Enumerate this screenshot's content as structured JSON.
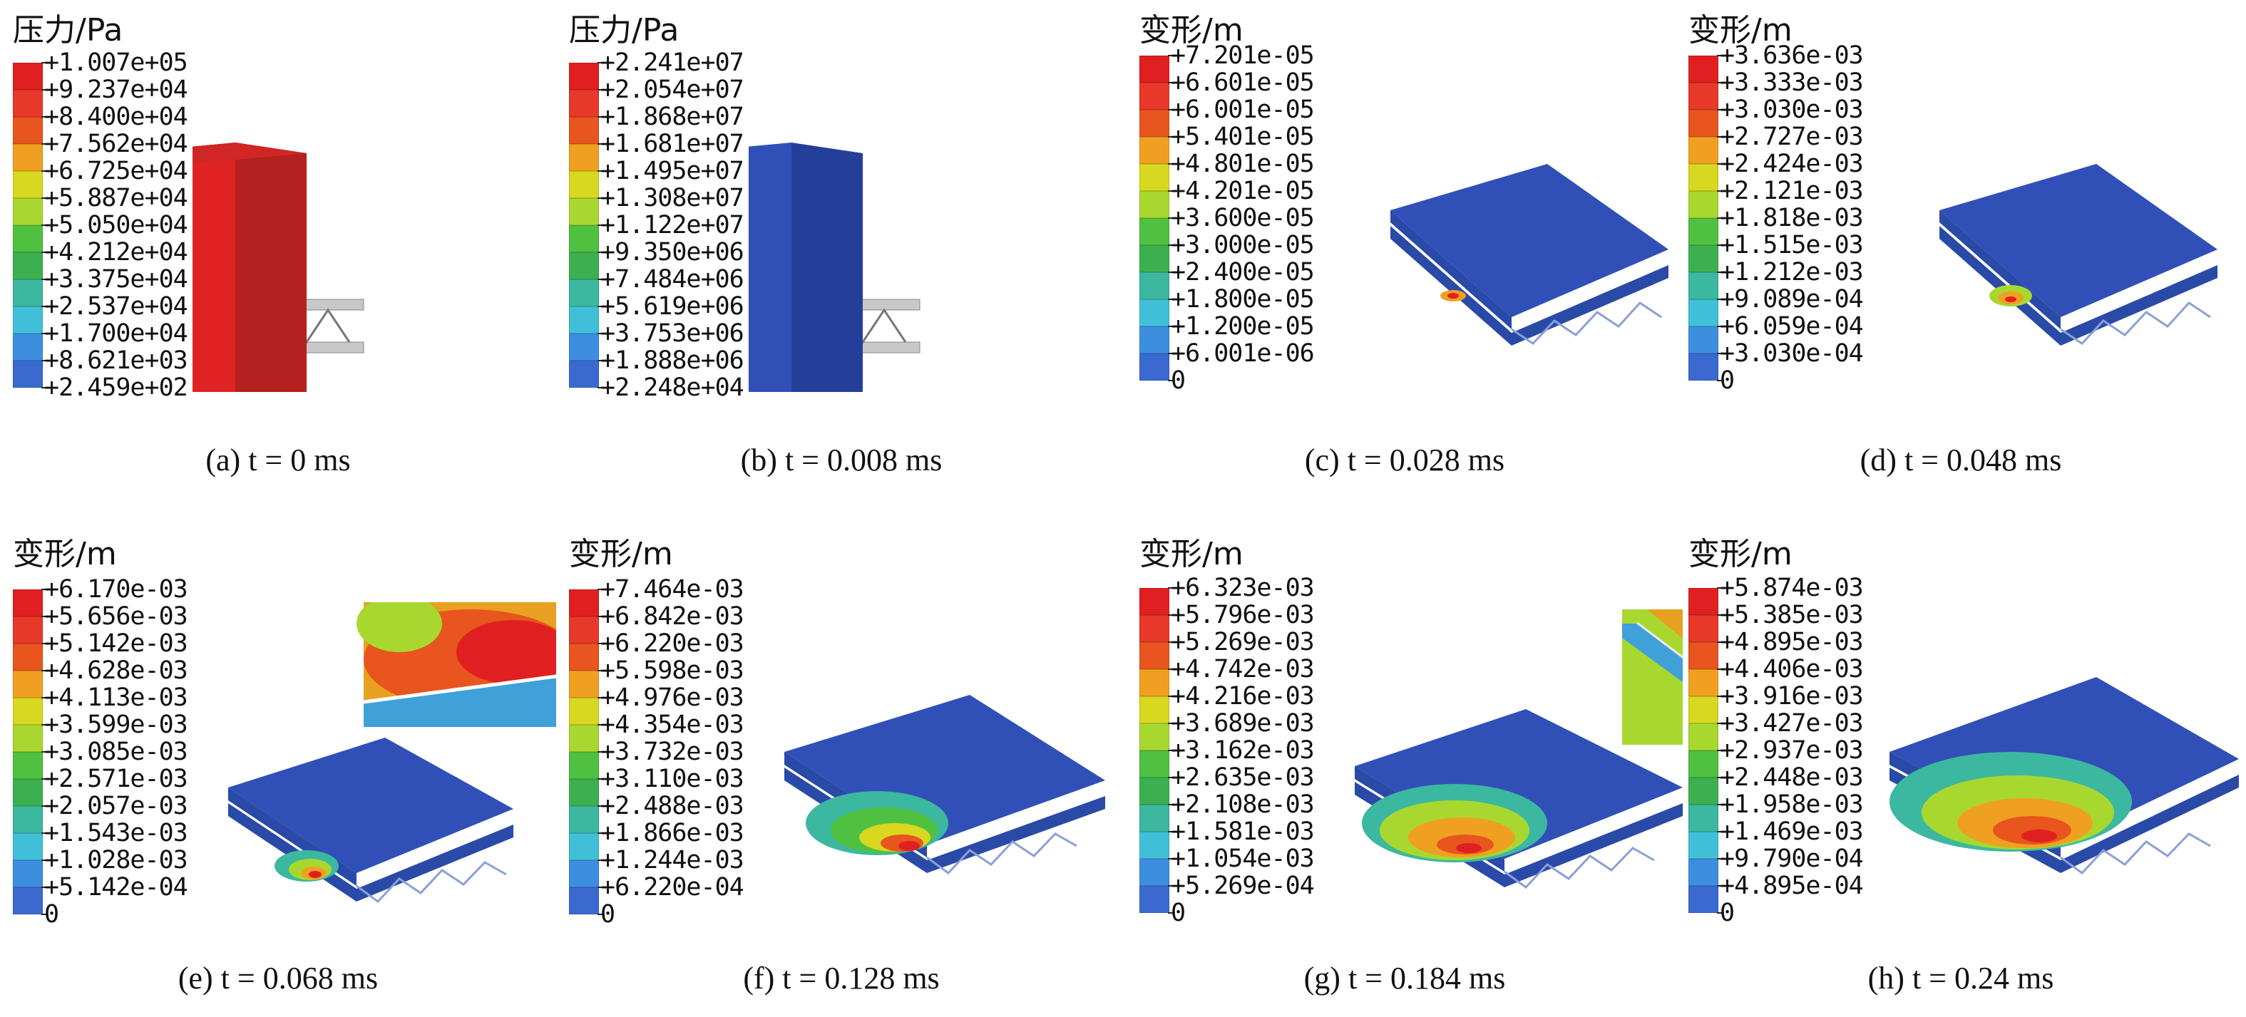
{
  "palette": [
    "#e02020",
    "#e8382a",
    "#e8551e",
    "#f0a020",
    "#d8d820",
    "#a8d830",
    "#50c040",
    "#3cb050",
    "#3cb8a0",
    "#40c0d8",
    "#3e8ee0",
    "#3a6ad0",
    "#3050b8"
  ],
  "panels": [
    {
      "title": "压力/Pa",
      "caption": "(a) t = 0 ms",
      "ticks": [
        "+1.007e+05",
        "+9.237e+04",
        "+8.400e+04",
        "+7.562e+04",
        "+6.725e+04",
        "+5.887e+04",
        "+5.050e+04",
        "+4.212e+04",
        "+3.375e+04",
        "+2.537e+04",
        "+1.700e+04",
        "+8.621e+03",
        "+2.459e+02"
      ]
    },
    {
      "title": "压力/Pa",
      "caption": "(b) t = 0.008 ms",
      "ticks": [
        "+2.241e+07",
        "+2.054e+07",
        "+1.868e+07",
        "+1.681e+07",
        "+1.495e+07",
        "+1.308e+07",
        "+1.122e+07",
        "+9.350e+06",
        "+7.484e+06",
        "+5.619e+06",
        "+3.753e+06",
        "+1.888e+06",
        "+2.248e+04"
      ]
    },
    {
      "title": "变形/m",
      "caption": "(c) t = 0.028 ms",
      "ticks": [
        "+7.201e-05",
        "+6.601e-05",
        "+6.001e-05",
        "+5.401e-05",
        "+4.801e-05",
        "+4.201e-05",
        "+3.600e-05",
        "+3.000e-05",
        "+2.400e-05",
        "+1.800e-05",
        "+1.200e-05",
        "+6.001e-06",
        "0"
      ]
    },
    {
      "title": "变形/m",
      "caption": "(d) t = 0.048 ms",
      "ticks": [
        "+3.636e-03",
        "+3.333e-03",
        "+3.030e-03",
        "+2.727e-03",
        "+2.424e-03",
        "+2.121e-03",
        "+1.818e-03",
        "+1.515e-03",
        "+1.212e-03",
        "+9.089e-04",
        "+6.059e-04",
        "+3.030e-04",
        "0"
      ]
    },
    {
      "title": "变形/m",
      "caption": "(e) t = 0.068 ms",
      "ticks": [
        "+6.170e-03",
        "+5.656e-03",
        "+5.142e-03",
        "+4.628e-03",
        "+4.113e-03",
        "+3.599e-03",
        "+3.085e-03",
        "+2.571e-03",
        "+2.057e-03",
        "+1.543e-03",
        "+1.028e-03",
        "+5.142e-04",
        "0"
      ]
    },
    {
      "title": "变形/m",
      "caption": "(f) t = 0.128 ms",
      "ticks": [
        "+7.464e-03",
        "+6.842e-03",
        "+6.220e-03",
        "+5.598e-03",
        "+4.976e-03",
        "+4.354e-03",
        "+3.732e-03",
        "+3.110e-03",
        "+2.488e-03",
        "+1.866e-03",
        "+1.244e-03",
        "+6.220e-04",
        "0"
      ]
    },
    {
      "title": "变形/m",
      "caption": "(g) t = 0.184 ms",
      "ticks": [
        "+6.323e-03",
        "+5.796e-03",
        "+5.269e-03",
        "+4.742e-03",
        "+4.216e-03",
        "+3.689e-03",
        "+3.162e-03",
        "+2.635e-03",
        "+2.108e-03",
        "+1.581e-03",
        "+1.054e-03",
        "+5.269e-04",
        "0"
      ]
    },
    {
      "title": "变形/m",
      "caption": "(h) t = 0.24 ms",
      "ticks": [
        "+5.874e-03",
        "+5.385e-03",
        "+4.895e-03",
        "+4.406e-03",
        "+3.916e-03",
        "+3.427e-03",
        "+2.937e-03",
        "+2.448e-03",
        "+1.958e-03",
        "+1.469e-03",
        "+9.790e-04",
        "+4.895e-04",
        "0"
      ]
    }
  ]
}
